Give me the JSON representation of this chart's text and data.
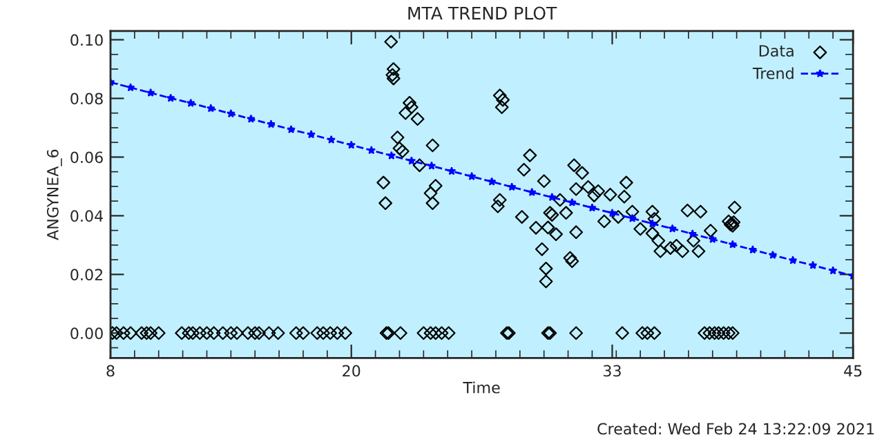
{
  "chart_data": {
    "type": "scatter",
    "title": "MTA TREND PLOT",
    "xlabel": "Time",
    "ylabel": "ANGYNEA_6",
    "annotations": [
      "Created: Wed Feb 24 13:22:09 2021"
    ],
    "xlim": [
      8,
      45
    ],
    "xticks": [
      8,
      20,
      33,
      45
    ],
    "ylim": [
      -0.0085,
      0.103
    ],
    "yticks": [
      {
        "value": 0,
        "label": "0.00"
      },
      {
        "value": 0.02,
        "label": "0.02"
      },
      {
        "value": 0.04,
        "label": "0.04"
      },
      {
        "value": 0.06,
        "label": "0.06"
      },
      {
        "value": 0.08,
        "label": "0.08"
      },
      {
        "value": 0.1,
        "label": "0.10"
      }
    ],
    "grid": false,
    "legend": "top right",
    "series": [
      {
        "name": "Data",
        "marker": "diamond",
        "color": "#000000",
        "x": [
          21.98,
          22.1,
          22.05,
          22.1,
          22.9,
          23.0,
          22.7,
          23.3,
          27.4,
          27.55,
          27.5,
          22.3,
          22.4,
          22.55,
          24.05,
          23.4,
          21.6,
          21.7,
          24.2,
          23.95,
          24.05,
          28.9,
          28.6,
          29.6,
          27.4,
          27.3,
          28.5,
          29.2,
          29.9,
          30.0,
          30.2,
          29.8,
          30.4,
          30.7,
          31.1,
          31.5,
          31.2,
          31.2,
          29.5,
          30.9,
          31.0,
          29.7,
          29.7,
          32.1,
          32.3,
          32.6,
          31.8,
          33.7,
          33.6,
          32.9,
          33.3,
          34.0,
          35.0,
          35.1,
          34.4,
          35.0,
          35.3,
          35.4,
          35.9,
          36.2,
          36.5,
          36.75,
          37.4,
          37.05,
          37.3,
          37.9,
          39.1,
          38.95,
          39.0,
          38.8,
          38.9,
          39.05,
          8.1,
          8.3,
          8.65,
          9.0,
          9.55,
          9.8,
          10.0,
          10.4,
          11.55,
          11.9,
          12.1,
          12.45,
          12.8,
          13.15,
          13.6,
          14.0,
          14.3,
          14.85,
          15.2,
          15.4,
          15.9,
          16.35,
          17.25,
          17.6,
          18.3,
          18.6,
          18.95,
          19.3,
          19.7,
          21.75,
          21.85,
          22.45,
          23.6,
          23.95,
          24.2,
          24.5,
          24.85,
          27.75,
          27.85,
          29.8,
          29.9,
          31.2,
          33.5,
          34.5,
          34.75,
          35.1,
          37.6,
          37.85,
          38.1,
          38.3,
          38.55,
          38.8,
          39.0
        ],
        "values": [
          0.0993,
          0.09,
          0.088,
          0.0868,
          0.0785,
          0.077,
          0.075,
          0.073,
          0.081,
          0.0795,
          0.077,
          0.0667,
          0.063,
          0.062,
          0.064,
          0.0572,
          0.0513,
          0.0443,
          0.0502,
          0.0477,
          0.0443,
          0.0606,
          0.0557,
          0.0518,
          0.0454,
          0.0432,
          0.0396,
          0.0359,
          0.041,
          0.0403,
          0.0337,
          0.036,
          0.0454,
          0.041,
          0.0572,
          0.0546,
          0.0491,
          0.0344,
          0.0286,
          0.0256,
          0.0245,
          0.022,
          0.0176,
          0.0469,
          0.0484,
          0.0381,
          0.0498,
          0.0513,
          0.0465,
          0.0472,
          0.0396,
          0.0414,
          0.0414,
          0.0389,
          0.0355,
          0.034,
          0.0315,
          0.0279,
          0.029,
          0.0298,
          0.0279,
          0.0418,
          0.0414,
          0.0315,
          0.0279,
          0.0349,
          0.0428,
          0.0374,
          0.0366,
          0.0381,
          0.037,
          0.0378,
          0,
          0,
          0,
          0,
          0,
          0,
          0,
          0,
          0,
          0,
          0,
          0,
          0,
          0,
          0,
          0,
          0,
          0,
          0,
          0,
          0,
          0,
          0,
          0,
          0,
          0,
          0,
          0,
          0,
          0,
          0,
          0,
          0,
          0,
          0,
          0,
          0,
          0,
          0,
          0,
          0,
          0,
          0,
          0,
          0,
          0,
          0,
          0,
          0,
          0,
          0,
          0,
          0
        ]
      },
      {
        "name": "Trend",
        "type": "line",
        "marker": "star",
        "line_style": "dashed",
        "color": "#0000ff",
        "x": [
          8,
          9,
          10,
          11,
          12,
          13,
          14,
          15,
          16,
          17,
          18,
          19,
          20,
          21,
          22,
          23,
          24,
          25,
          26,
          27,
          28,
          29,
          30,
          31,
          32,
          33,
          34,
          35,
          36,
          37,
          38,
          39,
          40,
          41,
          42,
          43,
          44,
          45
        ],
        "values": [
          0.0855,
          0.0837,
          0.0819,
          0.0801,
          0.0784,
          0.0766,
          0.0748,
          0.073,
          0.0712,
          0.0694,
          0.0677,
          0.0659,
          0.0641,
          0.0623,
          0.0605,
          0.0587,
          0.057,
          0.0552,
          0.0534,
          0.0516,
          0.0498,
          0.048,
          0.0463,
          0.0445,
          0.0427,
          0.0409,
          0.0391,
          0.0373,
          0.0356,
          0.0338,
          0.032,
          0.0302,
          0.0284,
          0.0266,
          0.0248,
          0.0231,
          0.0213,
          0.0195
        ]
      }
    ]
  }
}
